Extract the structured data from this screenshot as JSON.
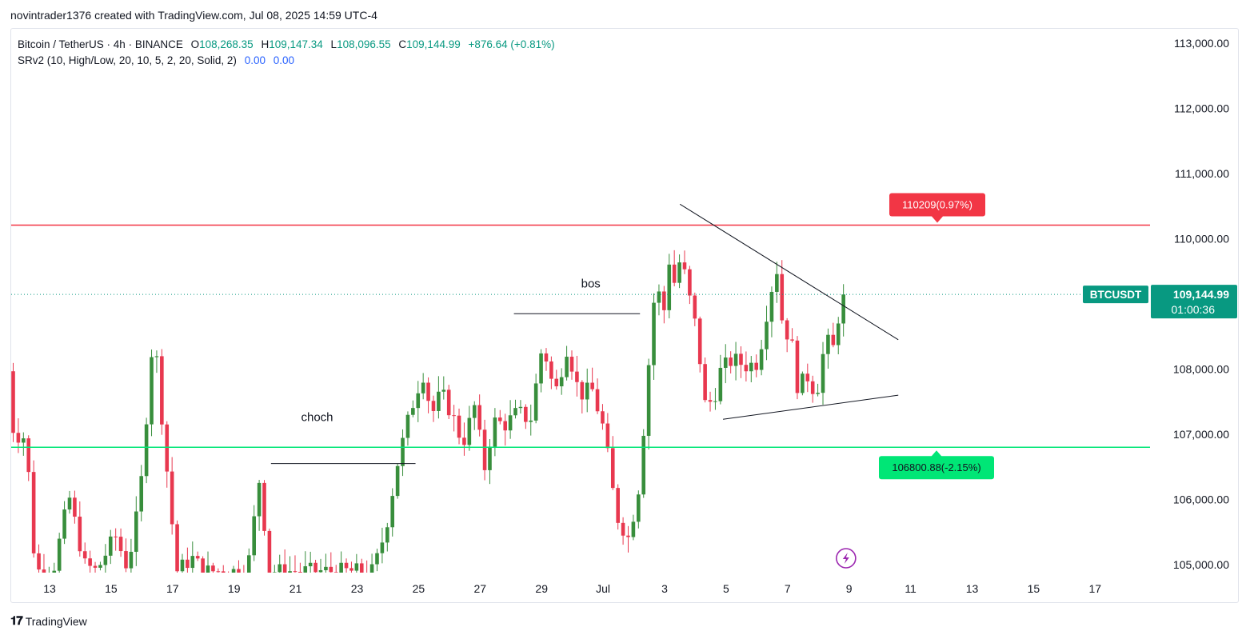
{
  "header": {
    "caption": "novintrader1376 created with TradingView.com, Jul 08, 2025 14:59 UTC-4"
  },
  "legend": {
    "symbol": "Bitcoin / TetherUS · 4h · BINANCE",
    "open_label": "O",
    "open": "108,268.35",
    "high_label": "H",
    "high": "109,147.34",
    "low_label": "L",
    "low": "108,096.55",
    "close_label": "C",
    "close": "109,144.99",
    "change": "+876.64 (+0.81%)",
    "indicator": "SRv2 (10, High/Low, 20, 10, 5, 2, 20, Solid, 2)",
    "indicator_v1": "0.00",
    "indicator_v2": "0.00"
  },
  "footer": {
    "brand": "TradingView"
  },
  "chart_data": {
    "type": "candlestick",
    "symbol": "BTCUSDT",
    "timeframe": "4h",
    "y_range": [
      104900,
      113500
    ],
    "y_ticks": [
      {
        "value": 113000,
        "label": "113,000.00"
      },
      {
        "value": 112000,
        "label": "112,000.00"
      },
      {
        "value": 111000,
        "label": "111,000.00"
      },
      {
        "value": 110000,
        "label": "110,000.00"
      },
      {
        "value": 108000,
        "label": "108,000.00"
      },
      {
        "value": 107000,
        "label": "107,000.00"
      },
      {
        "value": 106000,
        "label": "106,000.00"
      },
      {
        "value": 105000,
        "label": "105,000.00"
      }
    ],
    "x_ticks": [
      {
        "day": 13,
        "label": "13"
      },
      {
        "day": 15,
        "label": "15"
      },
      {
        "day": 17,
        "label": "17"
      },
      {
        "day": 19,
        "label": "19"
      },
      {
        "day": 21,
        "label": "21"
      },
      {
        "day": 23,
        "label": "23"
      },
      {
        "day": 25,
        "label": "25"
      },
      {
        "day": 27,
        "label": "27"
      },
      {
        "day": 29,
        "label": "29"
      },
      {
        "day": 31,
        "label": "Jul"
      },
      {
        "day": 33,
        "label": "3"
      },
      {
        "day": 35,
        "label": "5"
      },
      {
        "day": 37,
        "label": "7"
      },
      {
        "day": 39,
        "label": "9"
      },
      {
        "day": 41,
        "label": "11"
      },
      {
        "day": 43,
        "label": "13"
      },
      {
        "day": 45,
        "label": "15"
      },
      {
        "day": 47,
        "label": "17"
      }
    ],
    "last_price": {
      "value": 109144.99,
      "label": "109,144.99",
      "symbol": "BTCUSDT",
      "countdown": "01:00:36",
      "color": "#089981"
    },
    "resistance": {
      "value": 110209,
      "label": "110209(0.97%)",
      "color": "#f23645"
    },
    "support": {
      "value": 106800.88,
      "label": "106800.88(-2.15%)",
      "color": "#00e676"
    },
    "annotations": [
      {
        "text": "bos",
        "day": 30.6,
        "value": 109250
      },
      {
        "text": "choch",
        "day": 21.7,
        "value": 107200
      }
    ],
    "trendlines": [
      {
        "name": "bos-line",
        "from": {
          "day": 28.1,
          "value": 108850
        },
        "to": {
          "day": 32.2,
          "value": 108850
        }
      },
      {
        "name": "choch-line",
        "from": {
          "day": 20.2,
          "value": 106550
        },
        "to": {
          "day": 24.9,
          "value": 106550
        }
      },
      {
        "name": "triangle-upper",
        "from": {
          "day": 33.5,
          "value": 110530
        },
        "to": {
          "day": 40.6,
          "value": 108450
        }
      },
      {
        "name": "triangle-lower",
        "from": {
          "day": 34.9,
          "value": 107230
        },
        "to": {
          "day": 40.6,
          "value": 107600
        }
      }
    ],
    "colors": {
      "up": "#089981",
      "down": "#f23645",
      "up_candle": "#388e3c",
      "down_candle": "#e8384f"
    },
    "anchors": [
      [
        11.65,
        108850
      ],
      [
        12.0,
        107000
      ],
      [
        12.4,
        106950
      ],
      [
        12.7,
        104900
      ],
      [
        13.3,
        104950
      ],
      [
        13.8,
        106050
      ],
      [
        14.3,
        105000
      ],
      [
        14.7,
        104900
      ],
      [
        15.3,
        105450
      ],
      [
        15.7,
        104950
      ],
      [
        16.1,
        106000
      ],
      [
        16.55,
        108650
      ],
      [
        16.9,
        106850
      ],
      [
        17.3,
        104900
      ],
      [
        17.8,
        105100
      ],
      [
        18.2,
        104900
      ],
      [
        18.6,
        104900
      ],
      [
        19.1,
        104900
      ],
      [
        19.6,
        104900
      ],
      [
        20.0,
        106350
      ],
      [
        20.3,
        104900
      ],
      [
        21.0,
        104900
      ],
      [
        23.7,
        104900
      ],
      [
        24.1,
        105550
      ],
      [
        24.5,
        106600
      ],
      [
        24.9,
        107350
      ],
      [
        25.3,
        107950
      ],
      [
        25.6,
        107300
      ],
      [
        25.9,
        107650
      ],
      [
        26.3,
        107250
      ],
      [
        26.6,
        106850
      ],
      [
        27.0,
        107450
      ],
      [
        27.3,
        106450
      ],
      [
        27.6,
        107200
      ],
      [
        28.0,
        107150
      ],
      [
        28.4,
        107350
      ],
      [
        28.8,
        107200
      ],
      [
        29.2,
        108400
      ],
      [
        29.6,
        107600
      ],
      [
        30.0,
        108350
      ],
      [
        30.4,
        107600
      ],
      [
        30.8,
        107700
      ],
      [
        31.2,
        107050
      ],
      [
        31.6,
        105750
      ],
      [
        32.0,
        105400
      ],
      [
        32.35,
        106250
      ],
      [
        32.6,
        107800
      ],
      [
        32.9,
        109500
      ],
      [
        33.1,
        108650
      ],
      [
        33.3,
        109700
      ],
      [
        33.5,
        109300
      ],
      [
        33.7,
        109750
      ],
      [
        33.9,
        109250
      ],
      [
        34.2,
        108600
      ],
      [
        34.5,
        107400
      ],
      [
        34.8,
        107600
      ],
      [
        35.0,
        108000
      ],
      [
        35.4,
        108150
      ],
      [
        35.8,
        108050
      ],
      [
        36.2,
        108100
      ],
      [
        36.5,
        108900
      ],
      [
        36.8,
        109600
      ],
      [
        37.0,
        108700
      ],
      [
        37.3,
        108400
      ],
      [
        37.5,
        107700
      ],
      [
        37.8,
        107900
      ],
      [
        38.1,
        107600
      ],
      [
        38.4,
        108450
      ],
      [
        38.7,
        108300
      ],
      [
        38.9,
        109150
      ]
    ]
  }
}
